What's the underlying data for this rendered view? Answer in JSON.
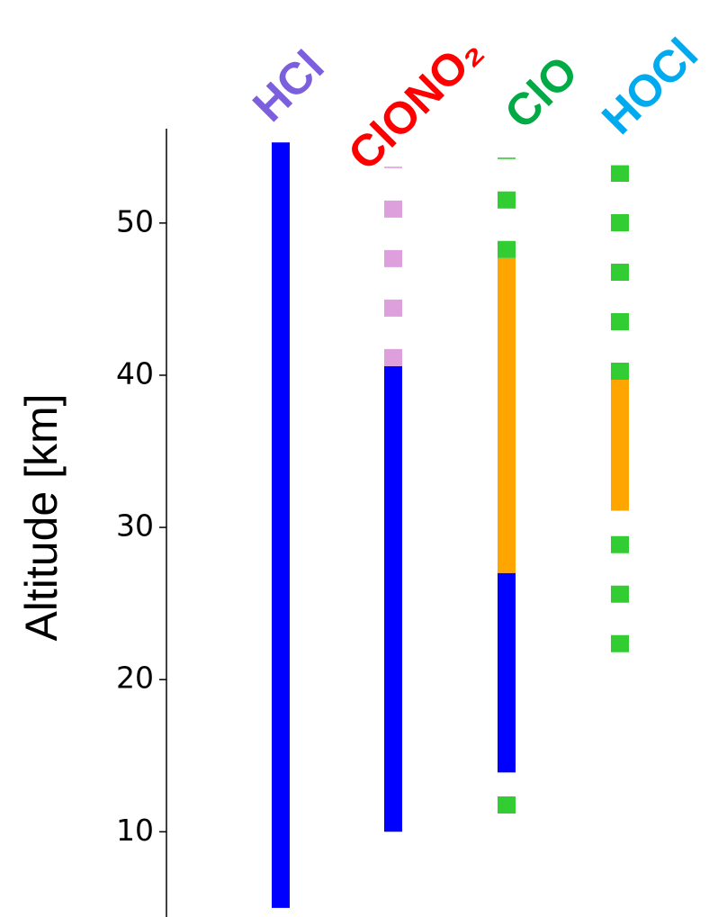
{
  "chart_data": {
    "type": "range",
    "y_label": "Altitude [km]",
    "ylim": [
      4.4,
      56.2
    ],
    "yticks": [
      10,
      20,
      30,
      40,
      50
    ],
    "series": [
      {
        "name": "HCl",
        "color": "#7b5fdc",
        "segments": [
          {
            "from": 5.0,
            "to": 55.3,
            "color": "#0000ff",
            "style": "solid"
          }
        ]
      },
      {
        "name": "ClONO₂",
        "color": "#ff0000",
        "segments": [
          {
            "from": 10.0,
            "to": 40.6,
            "color": "#0000ff",
            "style": "solid"
          },
          {
            "from": 40.6,
            "to": 53.7,
            "color": "#dda0dd",
            "style": "dashed"
          }
        ]
      },
      {
        "name": "ClO",
        "color": "#00aa44",
        "segments": [
          {
            "from": 11.2,
            "to": 13.9,
            "color": "#32cd32",
            "style": "dashed"
          },
          {
            "from": 13.9,
            "to": 27.0,
            "color": "#0000ff",
            "style": "solid"
          },
          {
            "from": 27.0,
            "to": 47.7,
            "color": "#ffa500",
            "style": "solid"
          },
          {
            "from": 47.7,
            "to": 54.3,
            "color": "#32cd32",
            "style": "dashed"
          }
        ]
      },
      {
        "name": "HOCl",
        "color": "#00aaee",
        "segments": [
          {
            "from": 21.8,
            "to": 31.1,
            "color": "#32cd32",
            "style": "dashed"
          },
          {
            "from": 31.1,
            "to": 39.7,
            "color": "#ffa500",
            "style": "solid"
          },
          {
            "from": 39.7,
            "to": 53.8,
            "color": "#32cd32",
            "style": "dashed"
          }
        ]
      }
    ]
  }
}
